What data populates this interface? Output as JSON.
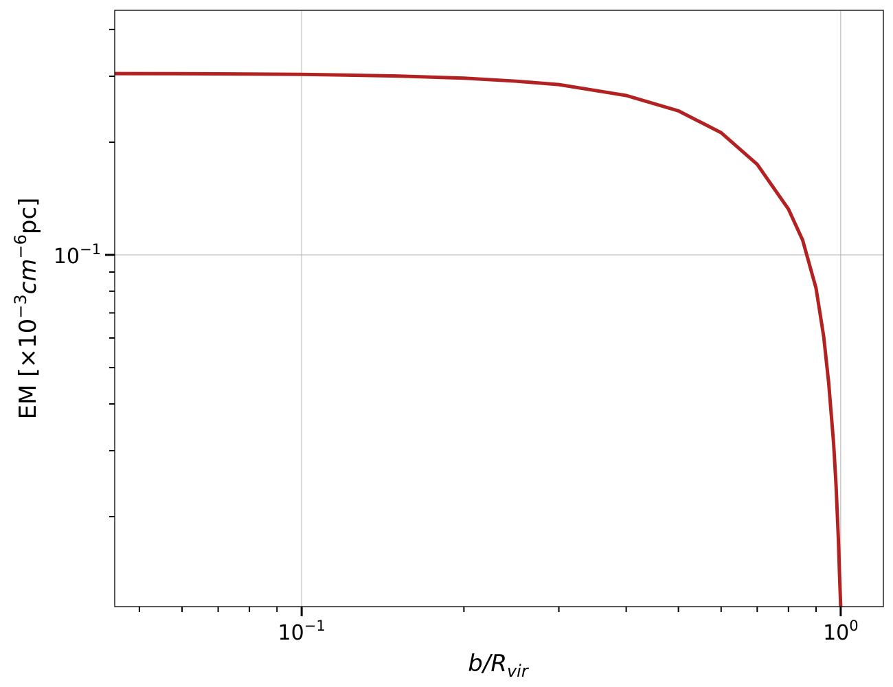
{
  "chart_data": {
    "type": "line",
    "title": "",
    "xlabel": {
      "base": "b/R",
      "sub": "vir"
    },
    "ylabel": {
      "prefix": "EM [×10",
      "exp1": "−3",
      "mid": "cm",
      "exp2": "−6",
      "suffix": "pc]"
    },
    "xscale": "log",
    "yscale": "log",
    "xlim": [
      0.045,
      1.2
    ],
    "ylim": [
      0.0115,
      0.45
    ],
    "x_tick_labels": [
      {
        "value": 0.1,
        "base": "10",
        "exp": "−1"
      },
      {
        "value": 1.0,
        "base": "10",
        "exp": "0"
      }
    ],
    "y_tick_labels": [
      {
        "value": 0.1,
        "base": "10",
        "exp": "−1"
      }
    ],
    "grid": true,
    "line_color": "#b22222",
    "grid_color": "#b0b0b0",
    "series": [
      {
        "x": [
          0.045,
          0.07,
          0.1,
          0.15,
          0.2,
          0.25,
          0.3,
          0.4,
          0.5,
          0.6,
          0.7,
          0.8,
          0.85,
          0.9,
          0.93,
          0.95,
          0.97,
          0.98,
          0.99,
          0.995,
          1.0
        ],
        "y": [
          0.305,
          0.3045,
          0.3035,
          0.3005,
          0.2965,
          0.291,
          0.285,
          0.2665,
          0.2425,
          0.212,
          0.1745,
          0.1325,
          0.1095,
          0.0815,
          0.0605,
          0.0455,
          0.0315,
          0.0245,
          0.0175,
          0.014,
          0.0115
        ]
      }
    ]
  }
}
